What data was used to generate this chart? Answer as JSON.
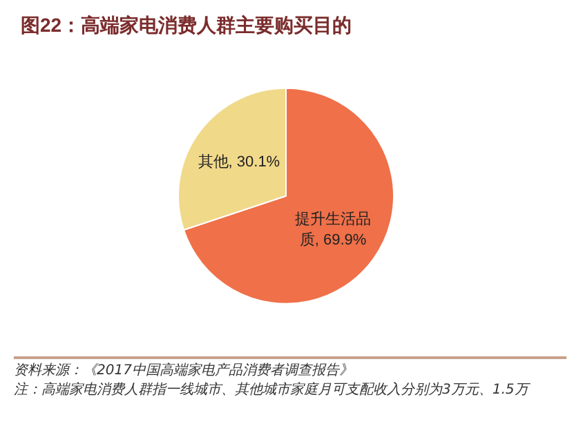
{
  "chart_data": {
    "type": "pie",
    "title": "图22：高端家电消费人群主要购买目的",
    "categories": [
      "提升生活品质",
      "其他"
    ],
    "values": [
      69.9,
      30.1
    ],
    "colors": [
      "#ef7049",
      "#f1d98a"
    ],
    "value_labels": [
      "69.9%",
      "30.1%"
    ],
    "legend": false,
    "annotations": [
      "资料来源：《2017中国高端家电产品消费者调查报告》",
      "注：高端家电消费人群指一线城市、其他城市家庭月可支配收入分别为3万元、1.5万"
    ]
  }
}
